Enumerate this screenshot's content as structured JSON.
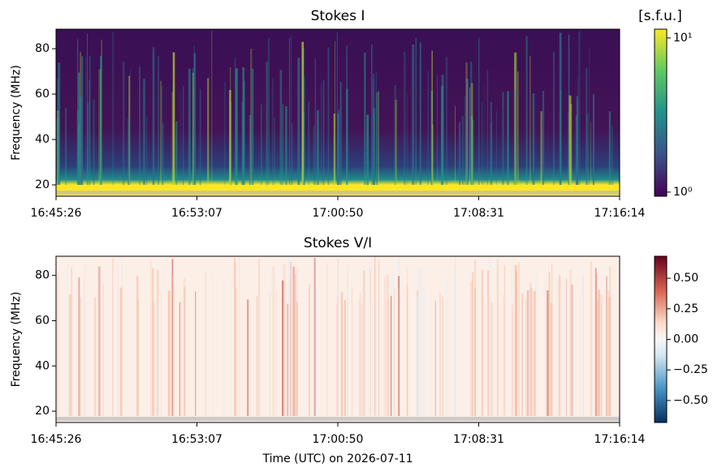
{
  "chart_data": [
    {
      "type": "heatmap",
      "title": "Stokes I",
      "ylabel": "Frequency (MHz)",
      "xticks": [
        "16:45:26",
        "16:53:07",
        "17:00:50",
        "17:08:31",
        "17:16:14"
      ],
      "ylim": [
        15,
        88.6
      ],
      "yticks": [
        20,
        40,
        60,
        80
      ],
      "colorbar": {
        "label": "[s.f.u.]",
        "colormap": "viridis",
        "log": true,
        "clim": [
          0.94,
          11.4
        ],
        "ticks": [
          {
            "value": 1,
            "label": "10⁰"
          },
          {
            "value": 10,
            "label": "10¹"
          }
        ]
      }
    },
    {
      "type": "heatmap",
      "title": "Stokes V/I",
      "ylabel": "Frequency (MHz)",
      "xlabel": "Time (UTC) on 2026-07-11",
      "xticks": [
        "16:45:26",
        "16:53:07",
        "17:00:50",
        "17:08:31",
        "17:16:14"
      ],
      "ylim": [
        15,
        88.5
      ],
      "yticks": [
        20,
        40,
        60,
        80
      ],
      "colorbar": {
        "colormap": "RdBu_r",
        "log": false,
        "clim": [
          -0.68,
          0.68
        ],
        "ticks": [
          {
            "value": -0.5,
            "label": "−0.50"
          },
          {
            "value": -0.25,
            "label": "−0.25"
          },
          {
            "value": 0,
            "label": "0.00"
          },
          {
            "value": 0.25,
            "label": "0.25"
          },
          {
            "value": 0.5,
            "label": "0.50"
          }
        ]
      }
    }
  ]
}
